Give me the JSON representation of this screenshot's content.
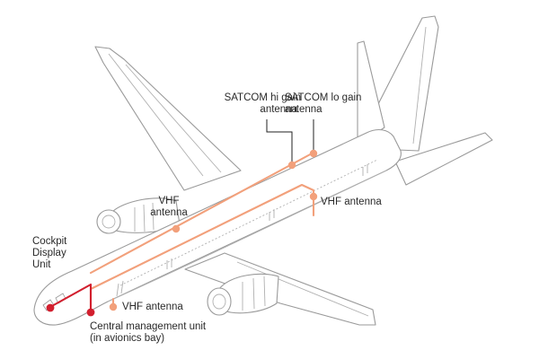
{
  "colors": {
    "wire": "#f2a07b",
    "node": "#f2a07b",
    "cockpit_wire": "#d21f2e",
    "cockpit_node": "#d21f2e",
    "leader": "#222222",
    "outline": "#9a9a9a"
  },
  "labels": {
    "satcom_hi": [
      "SATCOM hi gain",
      "antenna"
    ],
    "satcom_lo": [
      "SATCOM lo gain",
      "antenna"
    ],
    "vhf_top": [
      "VHF",
      "antenna"
    ],
    "vhf_right": "VHF antenna",
    "vhf_bottom": "VHF antenna",
    "cockpit": [
      "Cockpit",
      "Display",
      "Unit"
    ],
    "cmu": [
      "Central management unit",
      "(in avionics bay)"
    ]
  }
}
